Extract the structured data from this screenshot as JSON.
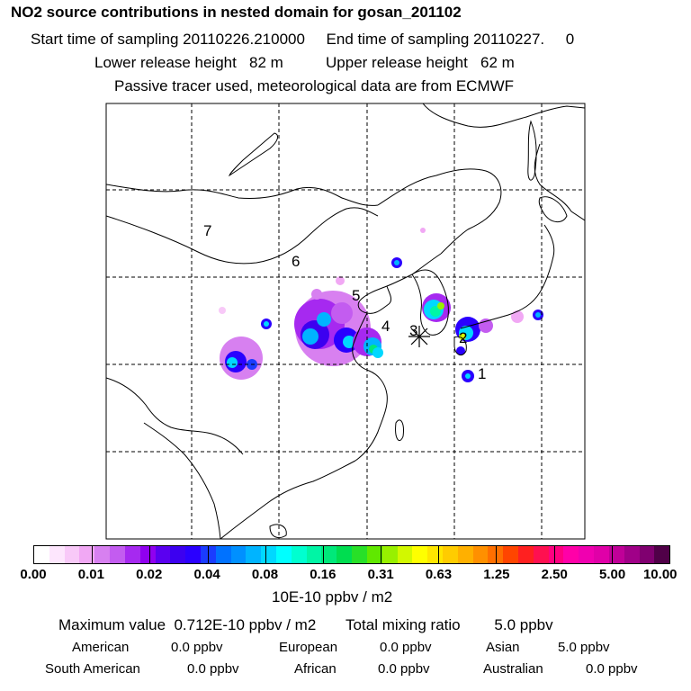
{
  "header": {
    "title": "NO2 source contributions in nested domain for gosan_201102",
    "sampling_line": "Start time of sampling 20110226.210000     End time of sampling 20110227.     0",
    "release_line": "Lower release height   82 m          Upper release height   62 m",
    "tracer_line": "Passive tracer used, meteorological data are from ECMWF"
  },
  "chart_data": {
    "type": "heatmap",
    "title": "NO2 source contributions in nested domain for gosan_201102",
    "region_labels": [
      "7",
      "6",
      "5",
      "4",
      "3",
      "2",
      "1"
    ],
    "station_marker": "receptor (Gosan)",
    "colorbar": {
      "tick_labels": [
        "0.00",
        "0.01",
        "0.02",
        "0.04",
        "0.08",
        "0.16",
        "0.31",
        "0.63",
        "1.25",
        "2.50",
        "5.00",
        "10.00"
      ],
      "colors": [
        "#ffffff",
        "#fde6fd",
        "#f8c9f8",
        "#f1a8f4",
        "#d780f0",
        "#c35cf0",
        "#a629f0",
        "#9000f0",
        "#5a00f0",
        "#3c00f0",
        "#2a00ff",
        "#1a3cff",
        "#0072ff",
        "#0090ff",
        "#00b4ff",
        "#00d8ff",
        "#00ffff",
        "#00ffd0",
        "#00f5a5",
        "#00e87a",
        "#00dd50",
        "#28e028",
        "#60e800",
        "#98f000",
        "#d2f800",
        "#ffff00",
        "#ffe600",
        "#ffcc00",
        "#ffb000",
        "#ff9000",
        "#ff6f00",
        "#ff4500",
        "#ff2020",
        "#ff1050",
        "#ff0080",
        "#ff00a8",
        "#f000b0",
        "#e000a8",
        "#c00098",
        "#a00088",
        "#800070",
        "#500048"
      ],
      "unit_label": "10E-10 ppbv / m2"
    }
  },
  "summary": {
    "max_line": "Maximum value  0.712E-10 ppbv / m2       Total mixing ratio        5.0 ppbv",
    "row1": [
      {
        "label": "American",
        "value": "0.0 ppbv"
      },
      {
        "label": "European",
        "value": "0.0 ppbv"
      },
      {
        "label": "Asian",
        "value": "5.0 ppbv"
      }
    ],
    "row2": [
      {
        "label": "South American",
        "value": "0.0 ppbv"
      },
      {
        "label": "African",
        "value": "0.0 ppbv"
      },
      {
        "label": "Australian",
        "value": "0.0 ppbv"
      }
    ]
  }
}
